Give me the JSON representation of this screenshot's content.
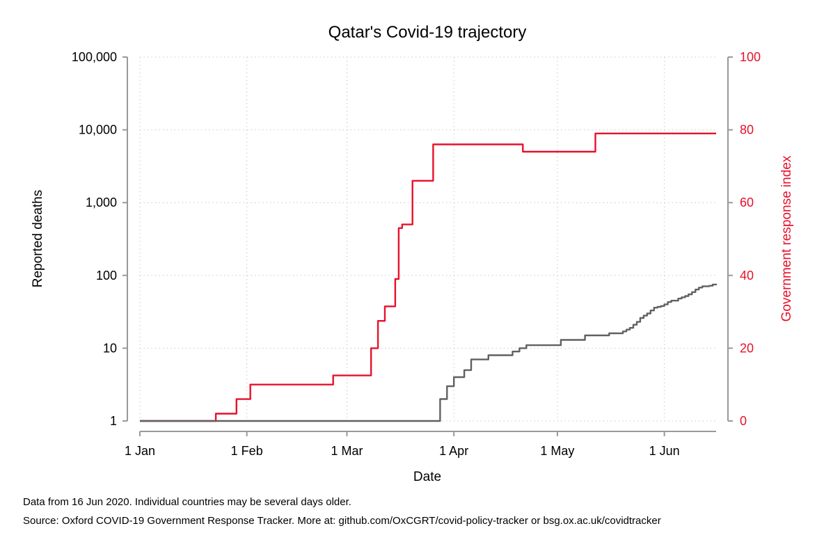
{
  "chart_data": {
    "type": "line",
    "title": "Qatar's Covid-19 trajectory",
    "xlabel": "Date",
    "ylabel_left": "Reported deaths",
    "ylabel_right": "Government response index",
    "x_range": [
      "2020-01-01",
      "2020-06-16"
    ],
    "x_ticks": [
      {
        "date": "2020-01-01",
        "label": "1 Jan"
      },
      {
        "date": "2020-02-01",
        "label": "1 Feb"
      },
      {
        "date": "2020-03-01",
        "label": "1 Mar"
      },
      {
        "date": "2020-04-01",
        "label": "1 Apr"
      },
      {
        "date": "2020-05-01",
        "label": "1 May"
      },
      {
        "date": "2020-06-01",
        "label": "1 Jun"
      }
    ],
    "y_left": {
      "scale": "log",
      "range": [
        1,
        100000
      ],
      "ticks": [
        {
          "value": 1,
          "label": "1"
        },
        {
          "value": 10,
          "label": "10"
        },
        {
          "value": 100,
          "label": "100"
        },
        {
          "value": 1000,
          "label": "1,000"
        },
        {
          "value": 10000,
          "label": "10,000"
        },
        {
          "value": 100000,
          "label": "100,000"
        }
      ]
    },
    "y_right": {
      "scale": "linear",
      "range": [
        0,
        100
      ],
      "ticks": [
        {
          "value": 0,
          "label": "0"
        },
        {
          "value": 20,
          "label": "20"
        },
        {
          "value": 40,
          "label": "40"
        },
        {
          "value": 60,
          "label": "60"
        },
        {
          "value": 80,
          "label": "80"
        },
        {
          "value": 100,
          "label": "100"
        }
      ]
    },
    "grid": true,
    "series": [
      {
        "axis": "right",
        "color": "#e8102a",
        "step": true,
        "points": [
          {
            "x": "2020-01-01",
            "y": 0
          },
          {
            "x": "2020-01-23",
            "y": 2
          },
          {
            "x": "2020-01-29",
            "y": 6
          },
          {
            "x": "2020-02-02",
            "y": 10
          },
          {
            "x": "2020-02-26",
            "y": 12.5
          },
          {
            "x": "2020-03-08",
            "y": 20
          },
          {
            "x": "2020-03-10",
            "y": 27.5
          },
          {
            "x": "2020-03-12",
            "y": 31.5
          },
          {
            "x": "2020-03-15",
            "y": 39
          },
          {
            "x": "2020-03-16",
            "y": 53
          },
          {
            "x": "2020-03-17",
            "y": 54
          },
          {
            "x": "2020-03-20",
            "y": 66
          },
          {
            "x": "2020-03-26",
            "y": 76
          },
          {
            "x": "2020-04-21",
            "y": 74
          },
          {
            "x": "2020-05-12",
            "y": 79
          },
          {
            "x": "2020-06-16",
            "y": 79
          }
        ]
      },
      {
        "axis": "left",
        "color": "#606060",
        "step": true,
        "points": [
          {
            "x": "2020-01-01",
            "y": 1
          },
          {
            "x": "2020-03-28",
            "y": 2
          },
          {
            "x": "2020-03-30",
            "y": 3
          },
          {
            "x": "2020-04-01",
            "y": 4
          },
          {
            "x": "2020-04-04",
            "y": 5
          },
          {
            "x": "2020-04-06",
            "y": 7
          },
          {
            "x": "2020-04-11",
            "y": 8
          },
          {
            "x": "2020-04-18",
            "y": 9
          },
          {
            "x": "2020-04-20",
            "y": 10
          },
          {
            "x": "2020-04-22",
            "y": 11
          },
          {
            "x": "2020-05-02",
            "y": 13
          },
          {
            "x": "2020-05-09",
            "y": 15
          },
          {
            "x": "2020-05-16",
            "y": 16
          },
          {
            "x": "2020-05-20",
            "y": 17
          },
          {
            "x": "2020-05-21",
            "y": 18
          },
          {
            "x": "2020-05-22",
            "y": 19
          },
          {
            "x": "2020-05-23",
            "y": 21
          },
          {
            "x": "2020-05-24",
            "y": 23
          },
          {
            "x": "2020-05-25",
            "y": 26
          },
          {
            "x": "2020-05-26",
            "y": 28
          },
          {
            "x": "2020-05-27",
            "y": 30
          },
          {
            "x": "2020-05-28",
            "y": 33
          },
          {
            "x": "2020-05-29",
            "y": 36
          },
          {
            "x": "2020-05-30",
            "y": 37
          },
          {
            "x": "2020-05-31",
            "y": 38
          },
          {
            "x": "2020-06-01",
            "y": 40
          },
          {
            "x": "2020-06-02",
            "y": 43
          },
          {
            "x": "2020-06-03",
            "y": 45
          },
          {
            "x": "2020-06-04",
            "y": 45
          },
          {
            "x": "2020-06-05",
            "y": 48
          },
          {
            "x": "2020-06-06",
            "y": 50
          },
          {
            "x": "2020-06-07",
            "y": 52
          },
          {
            "x": "2020-06-08",
            "y": 55
          },
          {
            "x": "2020-06-09",
            "y": 59
          },
          {
            "x": "2020-06-10",
            "y": 64
          },
          {
            "x": "2020-06-11",
            "y": 68
          },
          {
            "x": "2020-06-12",
            "y": 71
          },
          {
            "x": "2020-06-13",
            "y": 71
          },
          {
            "x": "2020-06-14",
            "y": 72
          },
          {
            "x": "2020-06-15",
            "y": 75
          },
          {
            "x": "2020-06-16",
            "y": 77
          }
        ]
      }
    ]
  },
  "footnotes": {
    "line1": "Data from 16 Jun 2020. Individual countries may be several days older.",
    "line2": "Source: Oxford COVID-19 Government Response Tracker. More at: github.com/OxCGRT/covid-policy-tracker or bsg.ox.ac.uk/covidtracker"
  }
}
